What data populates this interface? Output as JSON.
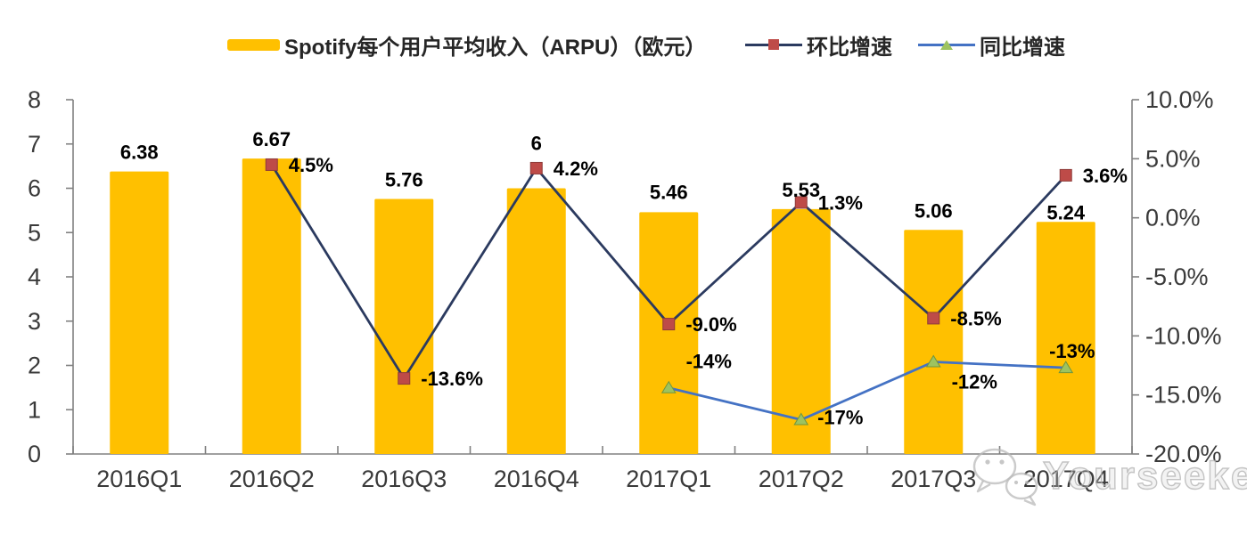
{
  "chart_data": {
    "type": "combo",
    "categories": [
      "2016Q1",
      "2016Q2",
      "2016Q3",
      "2016Q4",
      "2017Q1",
      "2017Q2",
      "2017Q3",
      "2017Q4"
    ],
    "series": [
      {
        "name": "Spotify每个用户平均收入（ARPU）（欧元）",
        "type": "bar",
        "axis": "left",
        "color": "#FFC000",
        "values": [
          6.38,
          6.67,
          5.76,
          6,
          5.46,
          5.53,
          5.06,
          5.24
        ],
        "labels": [
          "6.38",
          "6.67",
          "5.76",
          "6",
          "5.46",
          "5.53",
          "5.06",
          "5.24"
        ]
      },
      {
        "name": "环比增速",
        "type": "line",
        "axis": "right",
        "marker": "square",
        "line_color": "#2B3A5F",
        "marker_color": "#BE4B48",
        "marker_stroke": "#8E3B39",
        "values": [
          null,
          4.5,
          -13.6,
          4.2,
          -9.0,
          1.3,
          -8.5,
          3.6
        ],
        "labels": [
          null,
          "4.5%",
          "-13.6%",
          "4.2%",
          "-9.0%",
          "1.3%",
          "-8.5%",
          "3.6%"
        ]
      },
      {
        "name": "同比增速",
        "type": "line",
        "axis": "right",
        "marker": "triangle",
        "line_color": "#4472C4",
        "marker_color": "#9DC360",
        "marker_stroke": "#71953C",
        "values": [
          null,
          null,
          null,
          null,
          -14.4,
          -17.1,
          -12.2,
          -12.7
        ],
        "labels": [
          null,
          null,
          null,
          null,
          "-14%",
          "-17%",
          "-12%",
          "-13%"
        ]
      }
    ],
    "left_axis": {
      "min": 0,
      "max": 8,
      "ticks": [
        "8",
        "7",
        "6",
        "5",
        "4",
        "3",
        "2",
        "1",
        "0"
      ]
    },
    "right_axis": {
      "min": -20,
      "max": 10,
      "ticks": [
        "10.0%",
        "5.0%",
        "0.0%",
        "-5.0%",
        "-10.0%",
        "-15.0%",
        "-20.0%"
      ]
    },
    "grid": false,
    "legend_position": "top",
    "axis_color": "#808080"
  },
  "watermark": {
    "text": "Yourseeker",
    "icon": "wechat-icon"
  }
}
